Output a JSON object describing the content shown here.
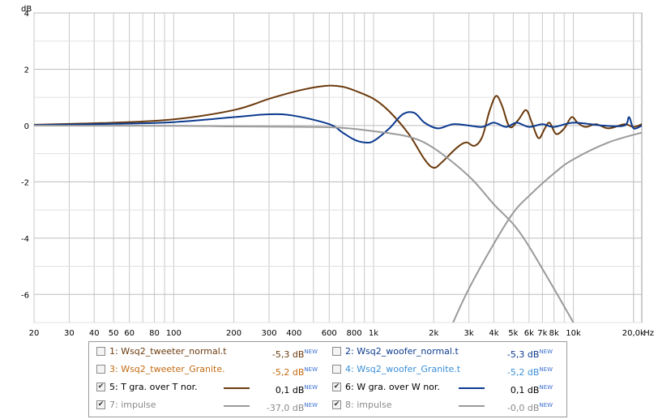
{
  "chart_data": {
    "type": "line",
    "ylabel": "dB",
    "xunit": "Hz",
    "xscale": "log",
    "xlim": [
      20,
      22000
    ],
    "ylim": [
      -7,
      4
    ],
    "yticks": [
      4,
      2,
      0,
      -2,
      -4,
      -6
    ],
    "xticks": [
      {
        "v": 20,
        "l": "20"
      },
      {
        "v": 30,
        "l": "30"
      },
      {
        "v": 40,
        "l": "40"
      },
      {
        "v": 50,
        "l": "50"
      },
      {
        "v": 60,
        "l": "60"
      },
      {
        "v": 80,
        "l": "80"
      },
      {
        "v": 100,
        "l": "100"
      },
      {
        "v": 200,
        "l": "200"
      },
      {
        "v": 300,
        "l": "300"
      },
      {
        "v": 400,
        "l": "400"
      },
      {
        "v": 600,
        "l": "600"
      },
      {
        "v": 800,
        "l": "800"
      },
      {
        "v": 1000,
        "l": "1k"
      },
      {
        "v": 2000,
        "l": "2k"
      },
      {
        "v": 3000,
        "l": "3k"
      },
      {
        "v": 4000,
        "l": "4k"
      },
      {
        "v": 5000,
        "l": "5k"
      },
      {
        "v": 6000,
        "l": "6k"
      },
      {
        "v": 7000,
        "l": "7k"
      },
      {
        "v": 8000,
        "l": "8k"
      },
      {
        "v": 10000,
        "l": "10k"
      },
      {
        "v": 20000,
        "l": "20,0k"
      }
    ],
    "grid": true,
    "series": [
      {
        "name": "5: T gra. over T nor.",
        "color": "#6b3a0d",
        "points": [
          [
            20,
            0.03
          ],
          [
            50,
            0.1
          ],
          [
            100,
            0.22
          ],
          [
            200,
            0.55
          ],
          [
            300,
            0.95
          ],
          [
            400,
            1.2
          ],
          [
            500,
            1.35
          ],
          [
            600,
            1.42
          ],
          [
            700,
            1.38
          ],
          [
            800,
            1.25
          ],
          [
            1000,
            0.95
          ],
          [
            1200,
            0.5
          ],
          [
            1500,
            -0.3
          ],
          [
            1800,
            -1.2
          ],
          [
            2000,
            -1.5
          ],
          [
            2200,
            -1.3
          ],
          [
            2600,
            -0.8
          ],
          [
            2900,
            -0.6
          ],
          [
            3200,
            -0.72
          ],
          [
            3500,
            -0.4
          ],
          [
            3800,
            0.5
          ],
          [
            4100,
            1.05
          ],
          [
            4400,
            0.7
          ],
          [
            4800,
            -0.05
          ],
          [
            5300,
            0.2
          ],
          [
            5800,
            0.55
          ],
          [
            6200,
            0.1
          ],
          [
            6700,
            -0.45
          ],
          [
            7200,
            -0.1
          ],
          [
            7600,
            0.1
          ],
          [
            8200,
            -0.3
          ],
          [
            9000,
            -0.1
          ],
          [
            9800,
            0.3
          ],
          [
            10500,
            0.1
          ],
          [
            11500,
            -0.05
          ],
          [
            13000,
            0.05
          ],
          [
            15000,
            -0.1
          ],
          [
            18000,
            0.05
          ],
          [
            20000,
            -0.05
          ],
          [
            22000,
            0.05
          ]
        ]
      },
      {
        "name": "6: W gra. over W nor.",
        "color": "#0b3a8f",
        "points": [
          [
            20,
            0.02
          ],
          [
            50,
            0.06
          ],
          [
            100,
            0.12
          ],
          [
            200,
            0.3
          ],
          [
            300,
            0.4
          ],
          [
            400,
            0.35
          ],
          [
            600,
            0.05
          ],
          [
            700,
            -0.25
          ],
          [
            800,
            -0.5
          ],
          [
            900,
            -0.6
          ],
          [
            1000,
            -0.55
          ],
          [
            1200,
            -0.1
          ],
          [
            1400,
            0.4
          ],
          [
            1600,
            0.45
          ],
          [
            1800,
            0.1
          ],
          [
            2100,
            -0.1
          ],
          [
            2500,
            0.05
          ],
          [
            3000,
            0.0
          ],
          [
            3500,
            -0.05
          ],
          [
            4000,
            0.1
          ],
          [
            4600,
            -0.05
          ],
          [
            5200,
            0.1
          ],
          [
            6000,
            -0.05
          ],
          [
            7000,
            0.05
          ],
          [
            8000,
            -0.05
          ],
          [
            10000,
            0.1
          ],
          [
            14000,
            0.0
          ],
          [
            18000,
            0.0
          ],
          [
            19000,
            0.3
          ],
          [
            20000,
            -0.1
          ],
          [
            22000,
            0.0
          ]
        ]
      },
      {
        "name": "7: impulse",
        "color": "#9a9a9a",
        "points": [
          [
            20,
            0.0
          ],
          [
            100,
            -0.01
          ],
          [
            200,
            -0.03
          ],
          [
            500,
            -0.05
          ],
          [
            700,
            -0.08
          ],
          [
            1000,
            -0.2
          ],
          [
            1500,
            -0.4
          ],
          [
            2000,
            -0.8
          ],
          [
            3000,
            -1.8
          ],
          [
            4000,
            -2.8
          ],
          [
            5000,
            -3.5
          ],
          [
            6000,
            -4.3
          ],
          [
            8000,
            -5.8
          ],
          [
            10000,
            -7.0
          ]
        ]
      },
      {
        "name": "8: impulse",
        "color": "#9a9a9a",
        "points": [
          [
            2500,
            -7.0
          ],
          [
            3000,
            -5.8
          ],
          [
            4000,
            -4.2
          ],
          [
            5000,
            -3.1
          ],
          [
            6000,
            -2.5
          ],
          [
            8000,
            -1.7
          ],
          [
            10000,
            -1.2
          ],
          [
            15000,
            -0.6
          ],
          [
            22000,
            -0.25
          ]
        ]
      }
    ]
  },
  "legend": {
    "rows": [
      {
        "left": {
          "num": "1:",
          "name": "Wsq2_tweeter_normal.t",
          "value": "-5,3 dB",
          "sup": "NEW",
          "checked": false,
          "color": "#6b3a0d",
          "swatch": false
        },
        "right": {
          "num": "2:",
          "name": "Wsq2_woofer_normal.t",
          "value": "-5,3 dB",
          "sup": "NEW",
          "checked": false,
          "color": "#0b3a8f",
          "swatch": false
        }
      },
      {
        "left": {
          "num": "3:",
          "name": "Wsq2_tweeter_Granite.",
          "value": "-5,2 dB",
          "sup": "NEW",
          "checked": false,
          "color": "#c46a12",
          "swatch": false
        },
        "right": {
          "num": "4:",
          "name": "Wsq2_woofer_Granite.t",
          "value": "-5,2 dB",
          "sup": "NEW",
          "checked": false,
          "color": "#3a8fd8",
          "swatch": false
        }
      },
      {
        "left": {
          "num": "5:",
          "name": "T gra. over T nor.",
          "value": "0,1 dB",
          "sup": "NEW",
          "checked": true,
          "color": "#000000",
          "swatch": true,
          "swatchColor": "#6b3a0d"
        },
        "right": {
          "num": "6:",
          "name": "W gra. over W nor.",
          "value": "0,1 dB",
          "sup": "NEW",
          "checked": true,
          "color": "#000000",
          "swatch": true,
          "swatchColor": "#0b3a8f"
        }
      },
      {
        "left": {
          "num": "7:",
          "name": "impulse",
          "value": "-37,0 dB",
          "sup": "NEW",
          "checked": true,
          "color": "#8a8a8a",
          "swatch": true,
          "swatchColor": "#9a9a9a"
        },
        "right": {
          "num": "8:",
          "name": "impulse",
          "value": "-0,0 dB",
          "sup": "NEW",
          "checked": true,
          "color": "#8a8a8a",
          "swatch": true,
          "swatchColor": "#9a9a9a"
        }
      }
    ]
  }
}
